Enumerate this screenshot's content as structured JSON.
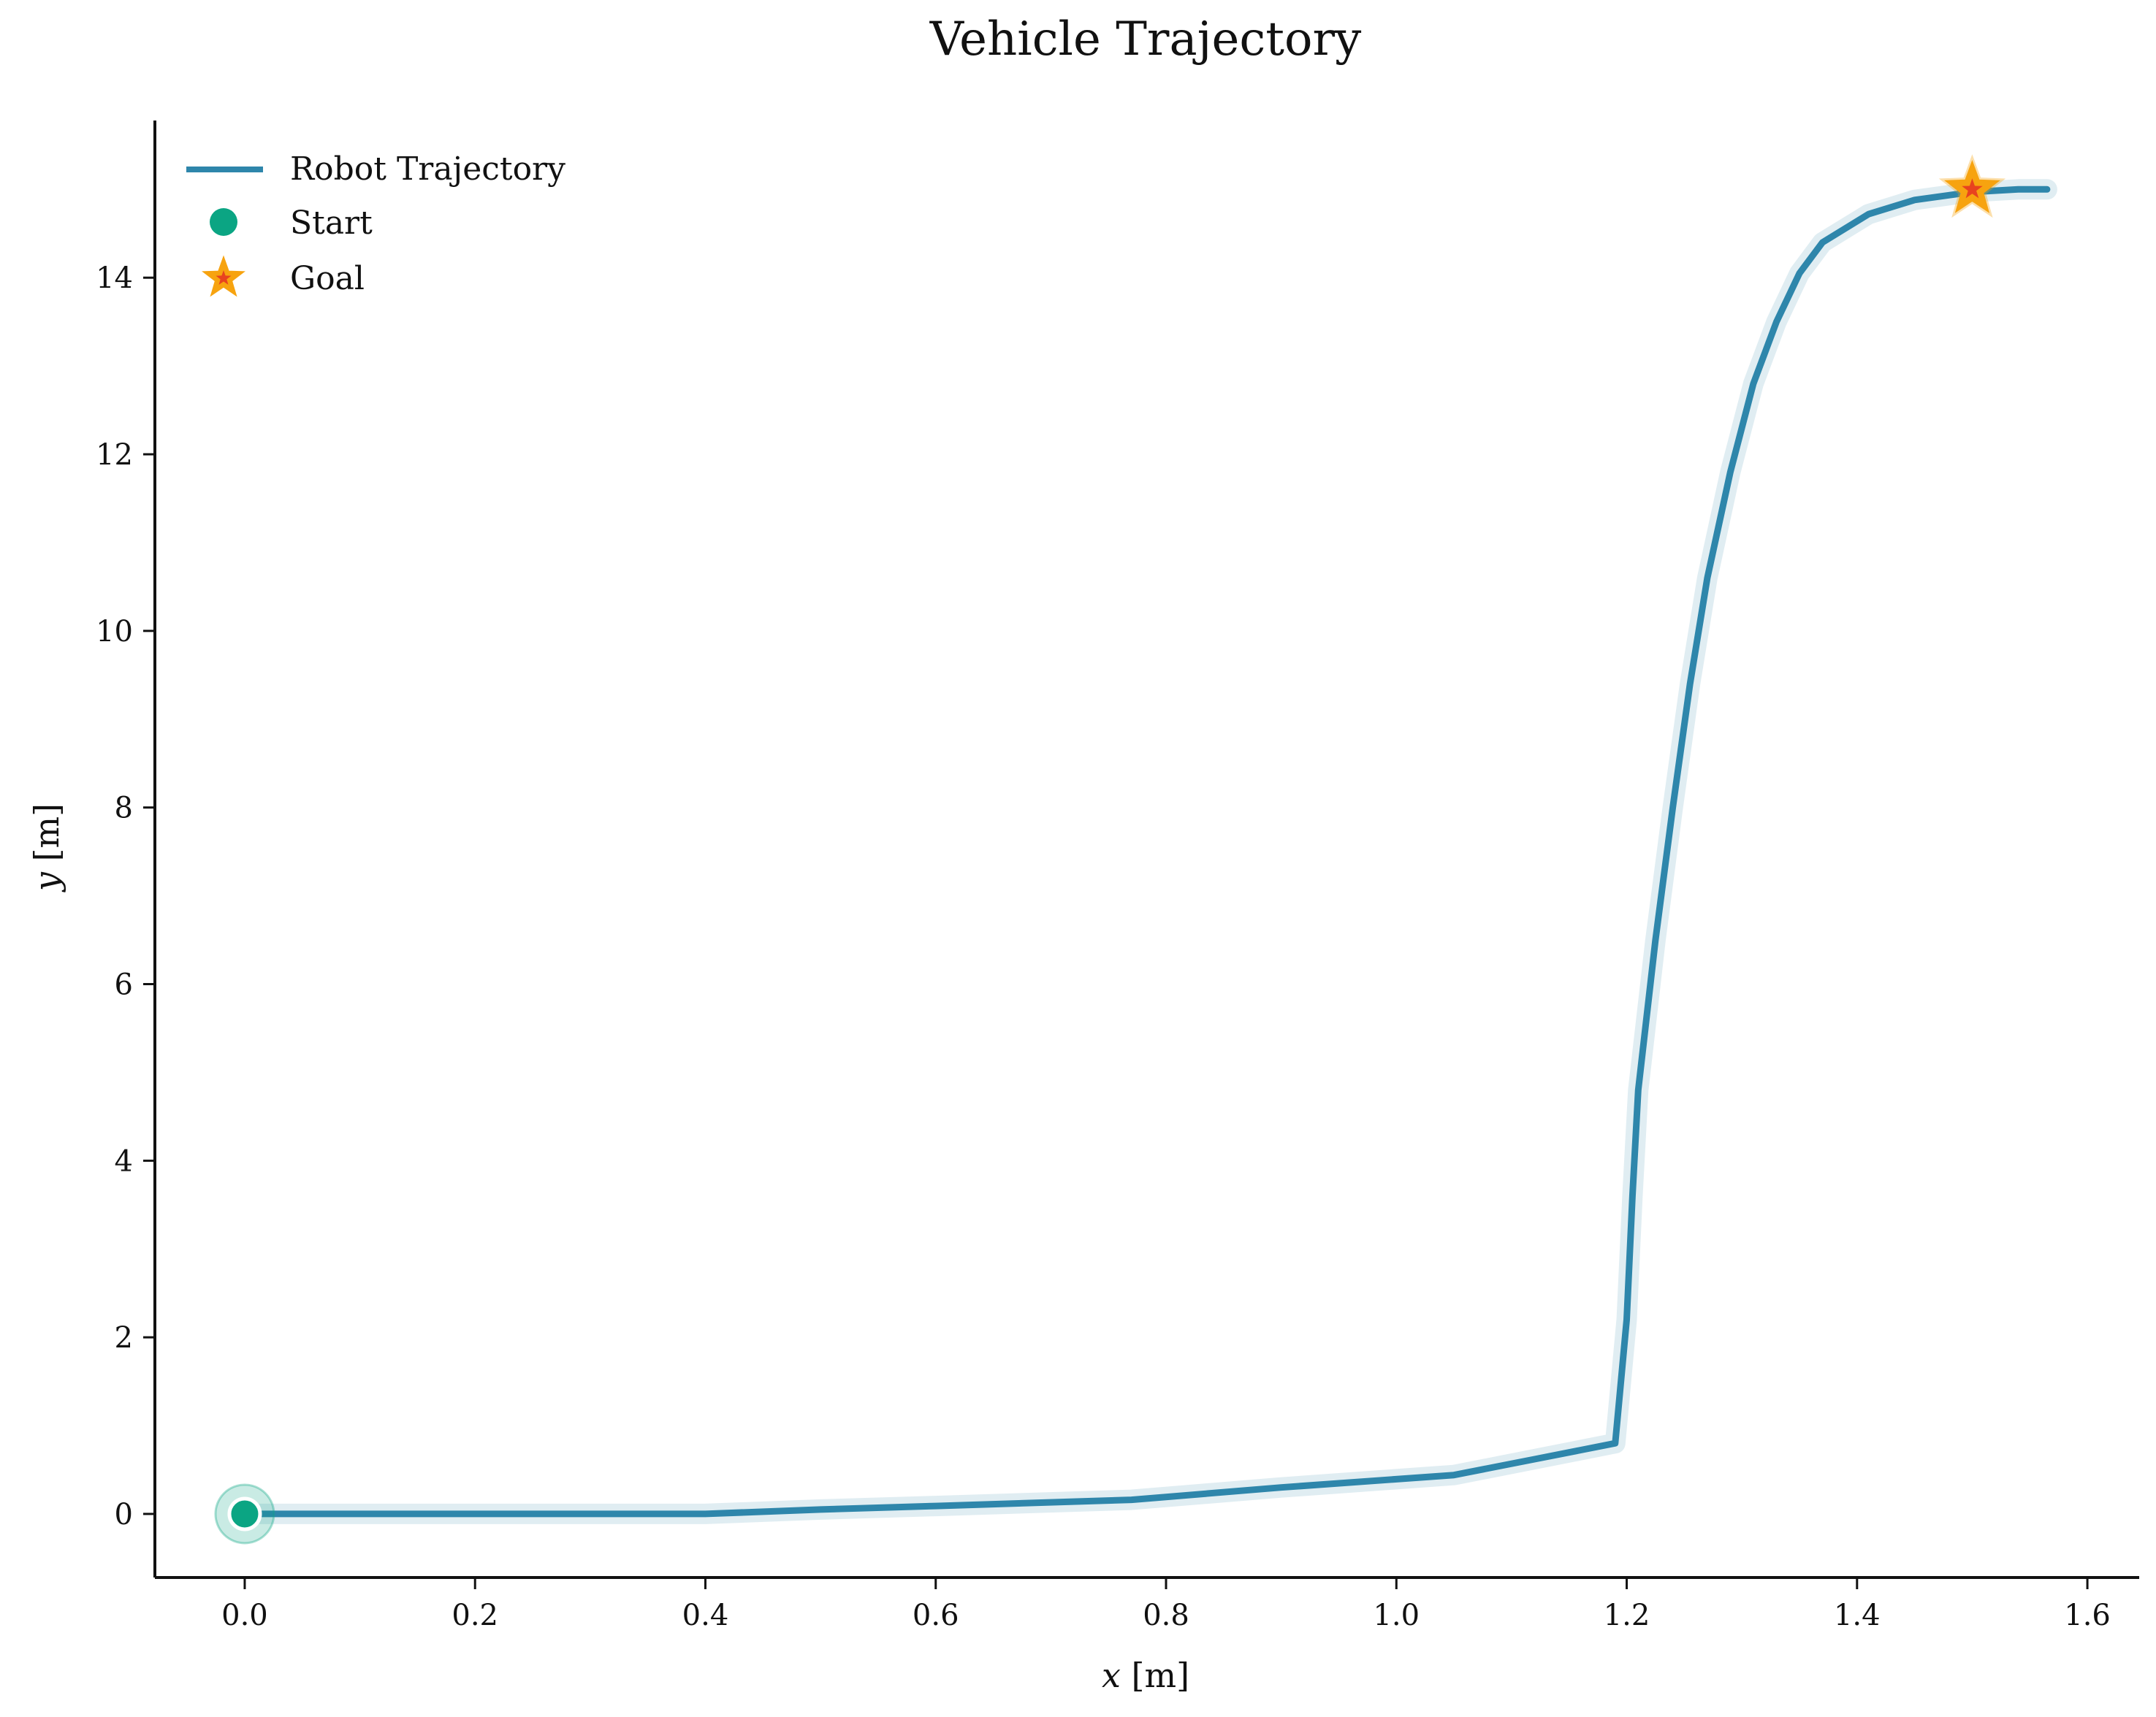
{
  "chart_data": {
    "type": "line",
    "title": "Vehicle Trajectory",
    "xlabel_var": "x",
    "xlabel_unit": " [m]",
    "ylabel_var": "y",
    "ylabel_unit": " [m]",
    "xlim": [
      -0.078,
      1.645
    ],
    "ylim": [
      -0.72,
      15.78
    ],
    "xticks": [
      0.0,
      0.2,
      0.4,
      0.6,
      0.8,
      1.0,
      1.2,
      1.4,
      1.6
    ],
    "xtick_labels": [
      "0.0",
      "0.2",
      "0.4",
      "0.6",
      "0.8",
      "1.0",
      "1.2",
      "1.4",
      "1.6"
    ],
    "yticks": [
      0,
      2,
      4,
      6,
      8,
      10,
      12,
      14
    ],
    "ytick_labels": [
      "0",
      "2",
      "4",
      "6",
      "8",
      "10",
      "12",
      "14"
    ],
    "grid": false,
    "legend_position": "top-left",
    "series": [
      {
        "name": "Robot Trajectory",
        "color": "#2e86ab",
        "x": [
          0.0,
          0.1,
          0.2,
          0.3,
          0.4,
          0.5,
          0.6,
          0.77,
          0.9,
          1.05,
          1.12,
          1.19,
          1.2,
          1.205,
          1.21,
          1.225,
          1.24,
          1.255,
          1.27,
          1.29,
          1.31,
          1.33,
          1.35,
          1.37,
          1.41,
          1.45,
          1.5,
          1.54,
          1.565
        ],
        "y": [
          0.0,
          0.0,
          0.0,
          0.0,
          0.0,
          0.05,
          0.09,
          0.16,
          0.3,
          0.44,
          0.62,
          0.8,
          2.2,
          3.6,
          4.8,
          6.5,
          8.0,
          9.4,
          10.6,
          11.8,
          12.8,
          13.5,
          14.05,
          14.4,
          14.72,
          14.88,
          14.97,
          15.0,
          15.0
        ]
      }
    ],
    "markers": [
      {
        "name": "Start",
        "x": 0.0,
        "y": 0.0,
        "color": "#0ba583",
        "shape": "circle"
      },
      {
        "name": "Goal",
        "x": 1.5,
        "y": 15.0,
        "color": "#f7a30f",
        "edge_color": "#e8431f",
        "shape": "star"
      }
    ]
  }
}
